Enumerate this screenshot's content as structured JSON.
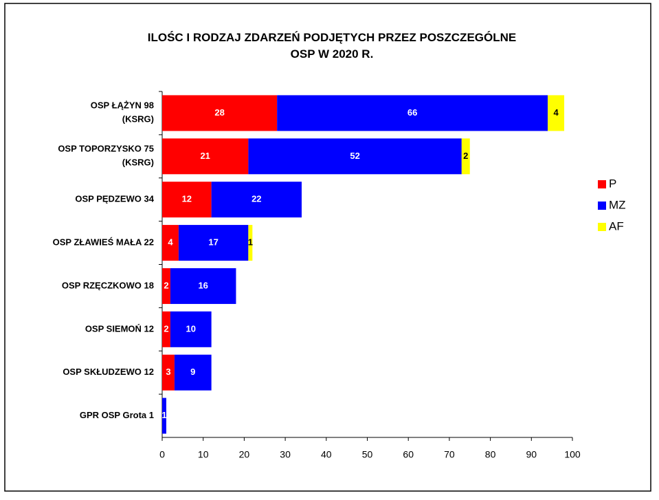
{
  "chart_data": {
    "type": "stacked_bar_horizontal",
    "title": "ILOŚC I RODZAJ ZDARZEŃ PODJĘTYCH PRZEZ POSZCZEGÓLNE\nOSP W 2020 R.",
    "categories": [
      "OSP ŁĄŻYN 98\n(KSRG)",
      "OSP TOPORZYSKO 75\n(KSRG)",
      "OSP PĘDZEWO 34",
      "OSP ZŁAWIEŚ MAŁA 22",
      "OSP RZĘCZKOWO 18",
      "OSP SIEMOŃ 12",
      "OSP SKŁUDZEWO 12",
      "GPR OSP Grota 1"
    ],
    "series": [
      {
        "name": "P",
        "color": "#ff0000",
        "values": [
          28,
          21,
          12,
          4,
          2,
          2,
          3,
          null
        ]
      },
      {
        "name": "MZ",
        "color": "#0000ff",
        "values": [
          66,
          52,
          22,
          17,
          16,
          10,
          9,
          1
        ]
      },
      {
        "name": "AF",
        "color": "#ffff00",
        "values": [
          4,
          2,
          null,
          1,
          null,
          null,
          null,
          null
        ]
      }
    ],
    "xlim": [
      0,
      100
    ],
    "xticks": [
      0,
      10,
      20,
      30,
      40,
      50,
      60,
      70,
      80,
      90,
      100
    ],
    "legend": "right",
    "grid": false
  }
}
